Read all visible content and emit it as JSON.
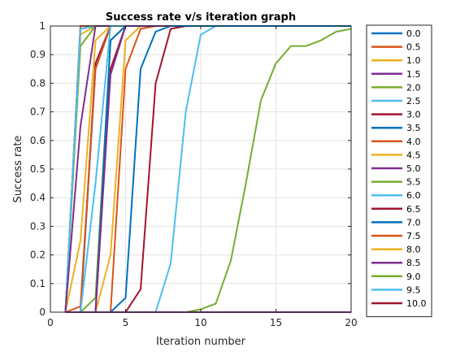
{
  "chart_data": {
    "type": "line",
    "title": "Success rate v/s iteration graph",
    "xlabel": "Iteration number",
    "ylabel": "Success rate",
    "xlim": [
      0,
      20
    ],
    "ylim": [
      0,
      1
    ],
    "xticks": [
      "0",
      "5",
      "10",
      "15",
      "20"
    ],
    "yticks": [
      "0",
      "0.1",
      "0.2",
      "0.3",
      "0.4",
      "0.5",
      "0.6",
      "0.7",
      "0.8",
      "0.9",
      "1"
    ],
    "grid": true,
    "legend_position": "outside-right",
    "x": [
      1,
      2,
      3,
      4,
      5,
      6,
      7,
      8,
      9,
      10,
      11,
      12,
      13,
      14,
      15,
      16,
      17,
      18,
      19,
      20
    ],
    "series": [
      {
        "name": "0.0",
        "color": "#0072BD",
        "values": [
          0,
          1,
          1,
          1,
          1,
          1,
          1,
          1,
          1,
          1,
          1,
          1,
          1,
          1,
          1,
          1,
          1,
          1,
          1,
          1
        ]
      },
      {
        "name": "0.5",
        "color": "#D95319",
        "values": [
          0,
          1,
          1,
          1,
          1,
          1,
          1,
          1,
          1,
          1,
          1,
          1,
          1,
          1,
          1,
          1,
          1,
          1,
          1,
          1
        ]
      },
      {
        "name": "1.0",
        "color": "#EDB120",
        "values": [
          0,
          0.97,
          1,
          1,
          1,
          1,
          1,
          1,
          1,
          1,
          1,
          1,
          1,
          1,
          1,
          1,
          1,
          1,
          1,
          1
        ]
      },
      {
        "name": "1.5",
        "color": "#7E2F8E",
        "values": [
          0,
          0.99,
          1,
          1,
          1,
          1,
          1,
          1,
          1,
          1,
          1,
          1,
          1,
          1,
          1,
          1,
          1,
          1,
          1,
          1
        ]
      },
      {
        "name": "2.0",
        "color": "#77AC30",
        "values": [
          0,
          0.93,
          1,
          1,
          1,
          1,
          1,
          1,
          1,
          1,
          1,
          1,
          1,
          1,
          1,
          1,
          1,
          1,
          1,
          1
        ]
      },
      {
        "name": "2.5",
        "color": "#4DBEEE",
        "values": [
          0,
          0.99,
          1,
          1,
          1,
          1,
          1,
          1,
          1,
          1,
          1,
          1,
          1,
          1,
          1,
          1,
          1,
          1,
          1,
          1
        ]
      },
      {
        "name": "3.0",
        "color": "#A2142F",
        "values": [
          0,
          0,
          0.87,
          1,
          1,
          1,
          1,
          1,
          1,
          1,
          1,
          1,
          1,
          1,
          1,
          1,
          1,
          1,
          1,
          1
        ]
      },
      {
        "name": "3.5",
        "color": "#0072BD",
        "values": [
          0,
          0,
          0.85,
          1,
          1,
          1,
          1,
          1,
          1,
          1,
          1,
          1,
          1,
          1,
          1,
          1,
          1,
          1,
          1,
          1
        ]
      },
      {
        "name": "4.0",
        "color": "#D95319",
        "values": [
          0,
          0.02,
          0.85,
          1,
          1,
          1,
          1,
          1,
          1,
          1,
          1,
          1,
          1,
          1,
          1,
          1,
          1,
          1,
          1,
          1
        ]
      },
      {
        "name": "4.5",
        "color": "#EDB120",
        "values": [
          0,
          0.25,
          0.95,
          1,
          1,
          1,
          1,
          1,
          1,
          1,
          1,
          1,
          1,
          1,
          1,
          1,
          1,
          1,
          1,
          1
        ]
      },
      {
        "name": "5.0",
        "color": "#7E2F8E",
        "values": [
          0,
          0.65,
          1,
          1,
          1,
          1,
          1,
          1,
          1,
          1,
          1,
          1,
          1,
          1,
          1,
          1,
          1,
          1,
          1,
          1
        ]
      },
      {
        "name": "5.5",
        "color": "#77AC30",
        "values": [
          0,
          0,
          0.05,
          0.95,
          1,
          1,
          1,
          1,
          1,
          1,
          1,
          1,
          1,
          1,
          1,
          1,
          1,
          1,
          1,
          1
        ]
      },
      {
        "name": "6.0",
        "color": "#4DBEEE",
        "values": [
          0,
          0,
          0.45,
          1,
          1,
          1,
          1,
          1,
          1,
          1,
          1,
          1,
          1,
          1,
          1,
          1,
          1,
          1,
          1,
          1
        ]
      },
      {
        "name": "6.5",
        "color": "#A2142F",
        "values": [
          0,
          0,
          0,
          0.85,
          1,
          1,
          1,
          1,
          1,
          1,
          1,
          1,
          1,
          1,
          1,
          1,
          1,
          1,
          1,
          1
        ]
      },
      {
        "name": "7.0",
        "color": "#0072BD",
        "values": [
          0,
          0,
          0,
          0.95,
          1,
          1,
          1,
          1,
          1,
          1,
          1,
          1,
          1,
          1,
          1,
          1,
          1,
          1,
          1,
          1
        ]
      },
      {
        "name": "7.5",
        "color": "#D95319",
        "values": [
          0,
          0,
          0,
          0,
          0.85,
          0.99,
          1,
          1,
          1,
          1,
          1,
          1,
          1,
          1,
          1,
          1,
          1,
          1,
          1,
          1
        ]
      },
      {
        "name": "8.0",
        "color": "#EDB120",
        "values": [
          0,
          0,
          0,
          0.2,
          0.95,
          1,
          1,
          1,
          1,
          1,
          1,
          1,
          1,
          1,
          1,
          1,
          1,
          1,
          1,
          1
        ]
      },
      {
        "name": "8.5",
        "color": "#7E2F8E",
        "values": [
          0,
          0,
          0,
          0.83,
          1,
          1,
          1,
          1,
          1,
          1,
          1,
          1,
          1,
          1,
          1,
          1,
          1,
          1,
          1,
          1
        ]
      },
      {
        "name": "9.0",
        "color": "#77AC30",
        "values": [
          0,
          0,
          0,
          0,
          0,
          0,
          0,
          0,
          0,
          0.01,
          0.03,
          0.18,
          0.45,
          0.74,
          0.87,
          0.93,
          0.93,
          0.95,
          0.98,
          0.99
        ]
      },
      {
        "name": "9.5",
        "color": "#4DBEEE",
        "values": [
          0,
          0,
          0,
          0,
          0,
          0,
          0,
          0.17,
          0.7,
          0.97,
          1,
          1,
          1,
          1,
          1,
          1,
          1,
          1,
          1,
          1
        ]
      },
      {
        "name": "10.0",
        "color": "#A2142F",
        "values": [
          0,
          0,
          0,
          0,
          0,
          0.08,
          0.8,
          0.99,
          1,
          1,
          1,
          1,
          1,
          1,
          1,
          1,
          1,
          1,
          1,
          1
        ]
      },
      {
        "name": "",
        "color": "#0072BD",
        "values": [
          0,
          0,
          0,
          0,
          0.05,
          0.85,
          0.98,
          1,
          1,
          1,
          1,
          1,
          1,
          1,
          1,
          1,
          1,
          1,
          1,
          1
        ]
      },
      {
        "name": "",
        "color": "#7E2F8E",
        "values": [
          0,
          0,
          0,
          0,
          0,
          0,
          0,
          0,
          0,
          0,
          0,
          0,
          0,
          0,
          0,
          0,
          0,
          0,
          0,
          0
        ]
      }
    ]
  }
}
